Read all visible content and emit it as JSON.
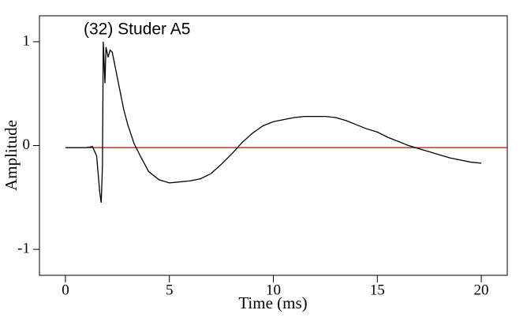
{
  "chart_data": {
    "type": "line",
    "title": "(32) Studer A5",
    "x_label": "Time (ms)",
    "y_label": "Amplitude",
    "x": [
      0,
      1.0,
      1.3,
      1.5,
      1.65,
      1.72,
      1.78,
      1.82,
      1.9,
      1.95,
      2.05,
      2.15,
      2.25,
      2.4,
      2.6,
      2.8,
      3.0,
      3.3,
      3.6,
      4.0,
      4.5,
      5.0,
      5.5,
      6.0,
      6.5,
      7.0,
      7.5,
      8.0,
      8.5,
      9.0,
      9.5,
      10.0,
      10.5,
      11.0,
      11.5,
      12.0,
      12.5,
      13.0,
      13.5,
      14.0,
      14.5,
      15.0,
      15.5,
      16.0,
      16.5,
      17.0,
      17.5,
      18.0,
      18.5,
      19.0,
      19.5,
      20.0
    ],
    "series": [
      {
        "color": "#000000",
        "values": [
          -0.02,
          -0.02,
          -0.01,
          -0.1,
          -0.45,
          -0.55,
          -0.2,
          1.0,
          0.6,
          0.95,
          0.85,
          0.92,
          0.9,
          0.75,
          0.55,
          0.35,
          0.2,
          0.02,
          -0.1,
          -0.25,
          -0.33,
          -0.36,
          -0.35,
          -0.34,
          -0.32,
          -0.27,
          -0.18,
          -0.08,
          0.03,
          0.12,
          0.19,
          0.23,
          0.25,
          0.27,
          0.28,
          0.28,
          0.28,
          0.27,
          0.24,
          0.2,
          0.16,
          0.13,
          0.08,
          0.04,
          0.0,
          -0.03,
          -0.06,
          -0.09,
          -0.12,
          -0.14,
          -0.16,
          -0.17
        ]
      }
    ],
    "reference_line": {
      "value": -0.02,
      "color": "#cc0000"
    },
    "xlim": [
      -1.25,
      21.25
    ],
    "xticks": [
      0,
      5,
      10,
      15,
      20
    ],
    "ylim": [
      -1.25,
      1.25
    ],
    "yticks": [
      -1,
      0,
      1
    ]
  }
}
